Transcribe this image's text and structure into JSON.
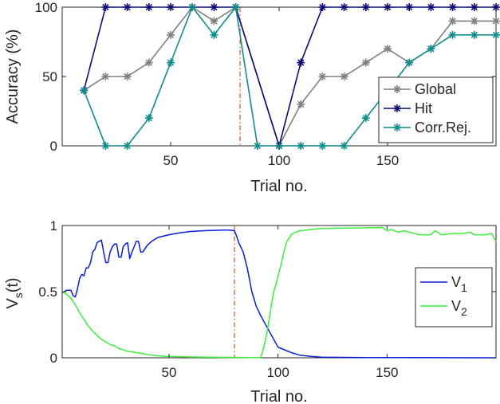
{
  "chart_data": [
    {
      "type": "line",
      "xlabel": "Trial no.",
      "ylabel": "Accuracy (%)",
      "xlim": [
        0,
        200
      ],
      "ylim": [
        0,
        100
      ],
      "xticks": [
        50,
        100,
        150
      ],
      "yticks": [
        0,
        50,
        100
      ],
      "grid": false,
      "legend_position": "bottom-right",
      "markers": "asterisk",
      "vline": {
        "x": 82,
        "color": "#d95319",
        "style": "dash-dot"
      },
      "series": [
        {
          "name": "Global",
          "color": "#808080",
          "x": [
            10,
            20,
            30,
            40,
            50,
            60,
            70,
            80,
            100,
            110,
            120,
            130,
            140,
            150,
            160,
            170,
            180,
            190,
            200
          ],
          "y": [
            40,
            50,
            50,
            60,
            80,
            100,
            90,
            100,
            0,
            30,
            50,
            50,
            60,
            70,
            60,
            70,
            90,
            90,
            90
          ]
        },
        {
          "name": "Hit",
          "color": "#0c0c7a",
          "x": [
            10,
            20,
            30,
            40,
            50,
            60,
            70,
            80,
            100,
            110,
            120,
            130,
            140,
            150,
            160,
            170,
            180,
            190,
            200
          ],
          "y": [
            40,
            100,
            100,
            100,
            100,
            100,
            100,
            100,
            0,
            60,
            100,
            100,
            100,
            100,
            100,
            100,
            100,
            100,
            100
          ]
        },
        {
          "name": "Corr.Rej.",
          "color": "#118c8c",
          "x": [
            10,
            20,
            30,
            40,
            50,
            60,
            70,
            80,
            90,
            100,
            110,
            120,
            130,
            140,
            150,
            160,
            170,
            180,
            190,
            200
          ],
          "y": [
            40,
            0,
            0,
            20,
            60,
            100,
            80,
            100,
            0,
            0,
            0,
            0,
            0,
            20,
            40,
            60,
            70,
            80,
            80,
            80
          ]
        }
      ]
    },
    {
      "type": "line",
      "xlabel": "Trial no.",
      "ylabel": "V_s(t)",
      "ylabel_main": "V",
      "ylabel_sub": "s",
      "ylabel_suffix": "(t)",
      "xlim": [
        1,
        200
      ],
      "ylim": [
        0,
        1
      ],
      "xticks": [
        50,
        100,
        150
      ],
      "yticks": [
        0,
        0.5,
        1
      ],
      "ytick_labels": [
        "0",
        "0.5",
        "1"
      ],
      "grid": false,
      "legend_position": "center-right",
      "vline": {
        "x": 80,
        "color": "#d95319",
        "style": "dash-dot"
      },
      "series": [
        {
          "name": "V_1",
          "label_main": "V",
          "label_sub": "1",
          "color": "#0a1cd8",
          "x": [
            1,
            3,
            5,
            6,
            7,
            8,
            9,
            10,
            11,
            12,
            13,
            14,
            15,
            16,
            17,
            18,
            19,
            20,
            21,
            22,
            23,
            24,
            25,
            26,
            27,
            28,
            29,
            30,
            31,
            32,
            33,
            34,
            35,
            36,
            37,
            38,
            40,
            42,
            45,
            50,
            55,
            60,
            65,
            70,
            75,
            78,
            80,
            81,
            82,
            84,
            86,
            88,
            90,
            92,
            94,
            96,
            98,
            100,
            103,
            106,
            110,
            115,
            120,
            140,
            160,
            180,
            200
          ],
          "y": [
            0.49,
            0.51,
            0.51,
            0.47,
            0.46,
            0.52,
            0.6,
            0.63,
            0.62,
            0.68,
            0.68,
            0.72,
            0.8,
            0.82,
            0.87,
            0.88,
            0.89,
            0.8,
            0.72,
            0.72,
            0.8,
            0.84,
            0.86,
            0.86,
            0.76,
            0.76,
            0.84,
            0.86,
            0.87,
            0.75,
            0.8,
            0.84,
            0.88,
            0.88,
            0.8,
            0.8,
            0.85,
            0.88,
            0.91,
            0.93,
            0.945,
            0.955,
            0.96,
            0.963,
            0.965,
            0.965,
            0.96,
            0.92,
            0.87,
            0.8,
            0.67,
            0.5,
            0.39,
            0.32,
            0.26,
            0.2,
            0.14,
            0.08,
            0.06,
            0.04,
            0.02,
            0.01,
            0.005,
            0.002,
            0.001,
            0.0005,
            0.0003
          ]
        },
        {
          "name": "V_2",
          "label_main": "V",
          "label_sub": "2",
          "color": "#3cf03c",
          "x": [
            1,
            3,
            5,
            7,
            9,
            11,
            13,
            15,
            17,
            19,
            21,
            23,
            25,
            27,
            29,
            31,
            35,
            40,
            45,
            50,
            60,
            70,
            80,
            90,
            92,
            93,
            94,
            95,
            96,
            97,
            98,
            99,
            100,
            101,
            102,
            103,
            104,
            105,
            106,
            108,
            110,
            115,
            120,
            130,
            140,
            148,
            150,
            152,
            155,
            158,
            160,
            165,
            170,
            172,
            175,
            180,
            185,
            188,
            190,
            195,
            198,
            200
          ],
          "y": [
            0.5,
            0.48,
            0.45,
            0.4,
            0.34,
            0.29,
            0.24,
            0.2,
            0.17,
            0.14,
            0.12,
            0.1,
            0.09,
            0.07,
            0.06,
            0.05,
            0.04,
            0.025,
            0.015,
            0.01,
            0.006,
            0.004,
            0.003,
            0.002,
            0.001,
            0.05,
            0.12,
            0.2,
            0.3,
            0.4,
            0.5,
            0.55,
            0.62,
            0.68,
            0.75,
            0.82,
            0.88,
            0.9,
            0.93,
            0.95,
            0.96,
            0.97,
            0.978,
            0.98,
            0.982,
            0.985,
            0.96,
            0.97,
            0.95,
            0.96,
            0.95,
            0.93,
            0.93,
            0.96,
            0.93,
            0.94,
            0.94,
            0.95,
            0.93,
            0.93,
            0.94,
            0.88
          ]
        }
      ]
    }
  ]
}
